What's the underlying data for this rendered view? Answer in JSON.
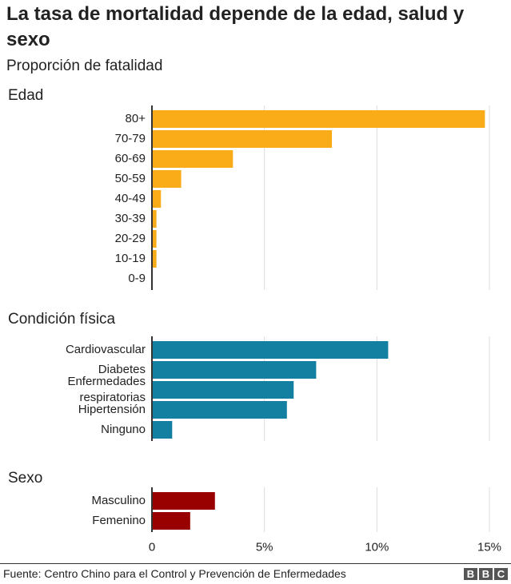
{
  "title": "La tasa de mortalidad depende de la edad, salud y sexo",
  "subtitle": "Proporción de fatalidad",
  "source": "Fuente: Centro Chino para el Control y Prevención de Enfermedades",
  "logo": "BBC",
  "chart_data": [
    {
      "type": "barh",
      "title": "Edad",
      "color": "#faab18",
      "categories": [
        "80+",
        "70-79",
        "60-69",
        "50-59",
        "40-49",
        "30-39",
        "20-29",
        "10-19",
        "0-9"
      ],
      "values": [
        14.8,
        8.0,
        3.6,
        1.3,
        0.4,
        0.2,
        0.2,
        0.2,
        0
      ],
      "xlim": [
        0,
        15
      ],
      "grid": true
    },
    {
      "type": "barh",
      "title": "Condición física",
      "color": "#1380a1",
      "categories": [
        "Cardiovascular",
        "Diabetes",
        "Enfermedades respiratorias",
        "Hipertensión",
        "Ninguno"
      ],
      "values": [
        10.5,
        7.3,
        6.3,
        6.0,
        0.9
      ],
      "xlim": [
        0,
        15
      ],
      "grid": true
    },
    {
      "type": "barh",
      "title": "Sexo",
      "color": "#990000",
      "categories": [
        "Masculino",
        "Femenino"
      ],
      "values": [
        2.8,
        1.7
      ],
      "xlim": [
        0,
        15
      ],
      "grid": true,
      "xticks": [
        0,
        {
          "value": 5,
          "label": "5%"
        },
        {
          "value": 10,
          "label": "10%"
        },
        {
          "value": 15,
          "label": "15%"
        }
      ]
    }
  ]
}
